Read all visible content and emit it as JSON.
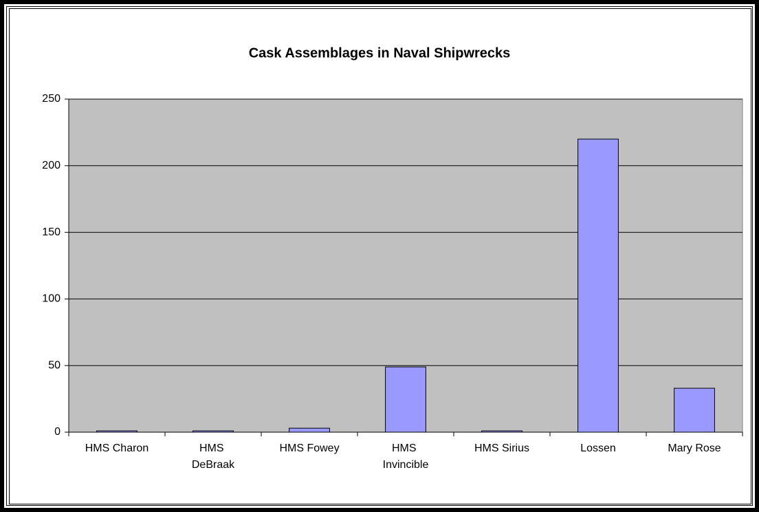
{
  "chart_data": {
    "type": "bar",
    "title": "Cask Assemblages in Naval Shipwrecks",
    "categories": [
      "HMS Charon",
      "HMS DeBraak",
      "HMS Fowey",
      "HMS Invincible",
      "HMS Sirius",
      "Lossen",
      "Mary Rose"
    ],
    "values": [
      1,
      1,
      3,
      49,
      1,
      220,
      33
    ],
    "color": "#9999ff",
    "ylim": [
      0,
      250
    ],
    "yticks": [
      0,
      50,
      100,
      150,
      200,
      250
    ],
    "grid": true
  }
}
